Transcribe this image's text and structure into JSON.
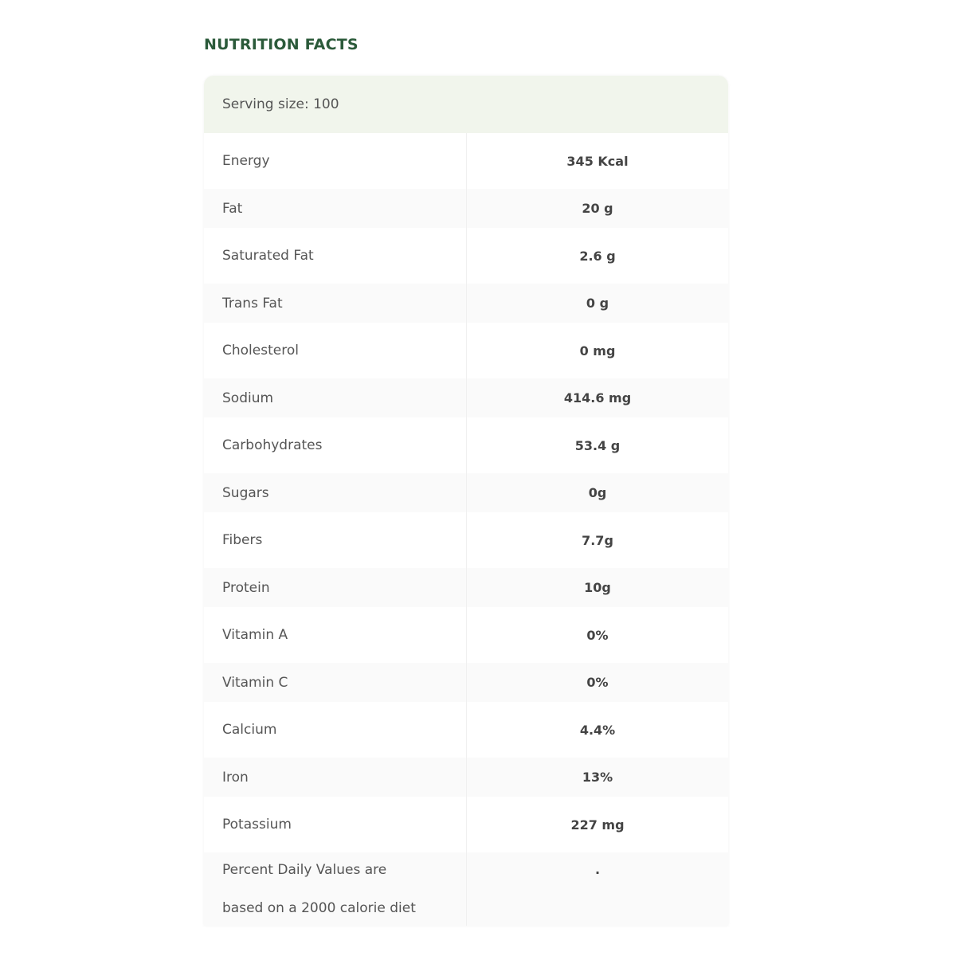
{
  "title": "NUTRITION FACTS",
  "serving_size": "Serving size: 100",
  "rows": [
    {
      "name": "Energy",
      "value": "345 Kcal"
    },
    {
      "name": "Fat",
      "value": "20 g"
    },
    {
      "name": "Saturated Fat",
      "value": "2.6 g"
    },
    {
      "name": "Trans Fat",
      "value": "0 g"
    },
    {
      "name": "Cholesterol",
      "value": "0 mg"
    },
    {
      "name": "Sodium",
      "value": "414.6 mg"
    },
    {
      "name": "Carbohydrates",
      "value": "53.4 g"
    },
    {
      "name": "Sugars",
      "value": "0g"
    },
    {
      "name": "Fibers",
      "value": "7.7g"
    },
    {
      "name": "Protein",
      "value": "10g"
    },
    {
      "name": "Vitamin A",
      "value": "0%"
    },
    {
      "name": "Vitamin C",
      "value": "0%"
    },
    {
      "name": "Calcium",
      "value": "4.4%"
    },
    {
      "name": "Iron",
      "value": "13%"
    },
    {
      "name": "Potassium",
      "value": "227 mg"
    }
  ],
  "footnote": {
    "line1": "Percent Daily Values are",
    "line2": "based on a 2000 calorie diet",
    "value": "."
  },
  "colors": {
    "title": "#2b5a3a",
    "header_bg": "#f1f5ec",
    "stripe_bg": "#fafafa"
  }
}
